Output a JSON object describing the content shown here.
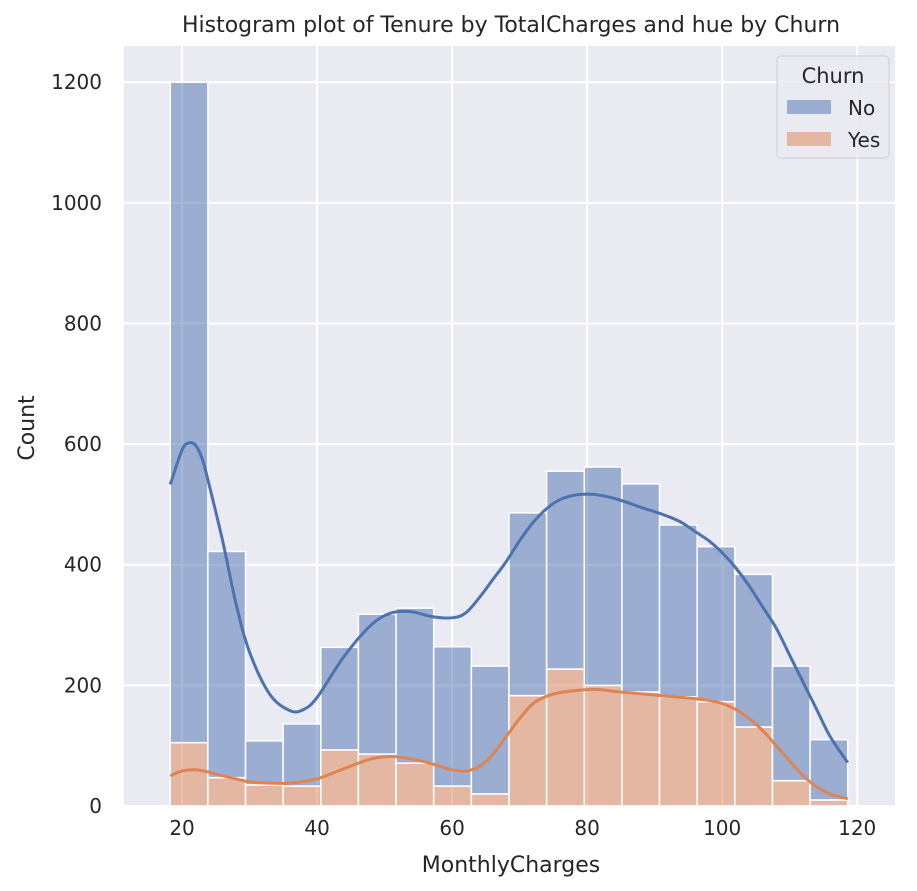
{
  "chart_data": {
    "type": "bar",
    "title": "Histogram plot of Tenure by TotalCharges and hue by Churn",
    "xlabel": "MonthlyCharges",
    "ylabel": "Count",
    "xlim": [
      11.4,
      125.6
    ],
    "ylim": [
      0,
      1260
    ],
    "xticks": [
      20,
      40,
      60,
      80,
      100,
      120
    ],
    "yticks": [
      0,
      200,
      400,
      600,
      800,
      1000,
      1200
    ],
    "grid": true,
    "stacked": true,
    "bin_edges": [
      18.25,
      23.82,
      29.4,
      34.97,
      40.55,
      46.12,
      51.7,
      57.27,
      62.85,
      68.42,
      74.0,
      79.57,
      85.15,
      90.72,
      96.3,
      101.87,
      107.45,
      113.02,
      118.6
    ],
    "legend": {
      "title": "Churn",
      "position": "top-right"
    },
    "series": [
      {
        "name": "No",
        "color": "#4c72b0",
        "values": [
          1095,
          375,
          73,
          103,
          170,
          232,
          257,
          231,
          212,
          303,
          328,
          362,
          345,
          285,
          257,
          253,
          190,
          100
        ],
        "kde_x": [
          18.25,
          20,
          21,
          22,
          23,
          24,
          26,
          28,
          30,
          33,
          36,
          38,
          40,
          44,
          48,
          51,
          54,
          57,
          60,
          62,
          64,
          66,
          68,
          70,
          72,
          74,
          76,
          78,
          80,
          82,
          84,
          86,
          88,
          90,
          92,
          94,
          96,
          98,
          100,
          102,
          104,
          106,
          108,
          110,
          112,
          114,
          116,
          118.6
        ],
        "kde_y": [
          533,
          590,
          602,
          598,
          575,
          533,
          440,
          335,
          255,
          185,
          158,
          160,
          180,
          248,
          300,
          320,
          322,
          314,
          312,
          320,
          345,
          375,
          405,
          440,
          470,
          493,
          508,
          515,
          517,
          515,
          510,
          503,
          495,
          488,
          480,
          470,
          455,
          440,
          420,
          395,
          365,
          330,
          295,
          250,
          205,
          160,
          115,
          72
        ]
      },
      {
        "name": "Yes",
        "color": "#dd8452",
        "values": [
          105,
          47,
          35,
          33,
          93,
          86,
          71,
          33,
          20,
          183,
          227,
          200,
          189,
          181,
          173,
          131,
          42,
          10
        ],
        "kde_x": [
          18.25,
          20,
          22,
          24,
          26,
          28,
          30,
          33,
          36,
          40,
          44,
          48,
          51,
          54,
          57,
          60,
          62,
          64,
          66,
          68,
          70,
          72,
          74,
          76,
          78,
          80,
          82,
          84,
          86,
          88,
          90,
          92,
          94,
          96,
          98,
          100,
          102,
          104,
          106,
          108,
          110,
          112,
          114,
          116,
          118.6
        ],
        "kde_y": [
          50,
          58,
          60,
          56,
          50,
          45,
          40,
          38,
          38,
          45,
          62,
          78,
          82,
          78,
          70,
          60,
          58,
          65,
          85,
          115,
          145,
          170,
          182,
          188,
          191,
          193,
          193,
          190,
          188,
          186,
          184,
          182,
          180,
          178,
          175,
          170,
          160,
          145,
          125,
          100,
          75,
          50,
          32,
          20,
          12
        ]
      }
    ]
  }
}
